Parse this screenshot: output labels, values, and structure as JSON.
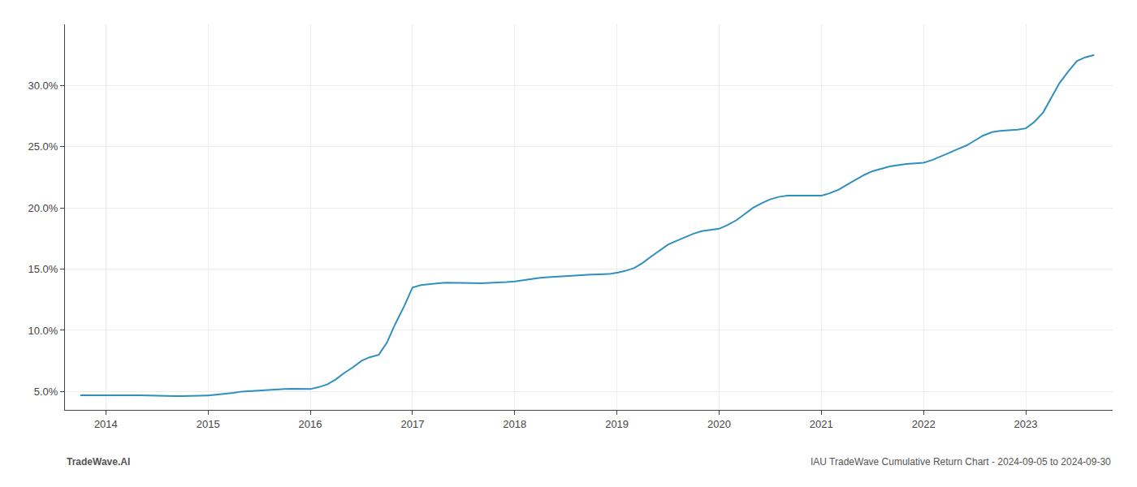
{
  "chart_data": {
    "type": "line",
    "annotations": [
      "TradeWave.AI",
      "IAU TradeWave Cumulative Return Chart - 2024-09-05 to 2024-09-30"
    ],
    "x": [
      2013.75,
      2014.0,
      2014.08,
      2014.17,
      2014.25,
      2014.33,
      2014.42,
      2014.5,
      2014.58,
      2014.67,
      2014.75,
      2014.83,
      2014.92,
      2015.0,
      2015.08,
      2015.17,
      2015.25,
      2015.33,
      2015.42,
      2015.5,
      2015.58,
      2015.67,
      2015.75,
      2015.83,
      2015.92,
      2016.0,
      2016.08,
      2016.17,
      2016.25,
      2016.33,
      2016.42,
      2016.5,
      2016.58,
      2016.67,
      2016.75,
      2016.83,
      2016.92,
      2017.0,
      2017.08,
      2017.17,
      2017.25,
      2017.33,
      2017.42,
      2017.5,
      2017.58,
      2017.67,
      2017.75,
      2017.83,
      2017.92,
      2018.0,
      2018.08,
      2018.17,
      2018.25,
      2018.33,
      2018.42,
      2018.5,
      2018.58,
      2018.67,
      2018.75,
      2018.83,
      2018.92,
      2019.0,
      2019.08,
      2019.17,
      2019.25,
      2019.33,
      2019.42,
      2019.5,
      2019.58,
      2019.67,
      2019.75,
      2019.83,
      2019.92,
      2020.0,
      2020.08,
      2020.17,
      2020.25,
      2020.33,
      2020.42,
      2020.5,
      2020.58,
      2020.67,
      2020.75,
      2020.83,
      2020.92,
      2021.0,
      2021.08,
      2021.17,
      2021.25,
      2021.33,
      2021.42,
      2021.5,
      2021.58,
      2021.67,
      2021.75,
      2021.83,
      2021.92,
      2022.0,
      2022.08,
      2022.17,
      2022.25,
      2022.33,
      2022.42,
      2022.5,
      2022.58,
      2022.67,
      2022.75,
      2022.83,
      2022.92,
      2023.0,
      2023.08,
      2023.17,
      2023.25,
      2023.33,
      2023.42,
      2023.5,
      2023.58,
      2023.67
    ],
    "values": [
      4.7,
      4.7,
      4.72,
      4.74,
      4.72,
      4.7,
      4.68,
      4.65,
      4.63,
      4.62,
      4.62,
      4.63,
      4.65,
      4.68,
      4.75,
      4.82,
      4.9,
      5.0,
      5.05,
      5.1,
      5.15,
      5.18,
      5.2,
      5.22,
      5.22,
      5.2,
      5.35,
      5.6,
      6.0,
      6.5,
      7.0,
      7.5,
      7.8,
      8.0,
      9.0,
      10.5,
      12.0,
      13.5,
      13.7,
      13.8,
      13.85,
      13.9,
      13.9,
      13.88,
      13.86,
      13.85,
      13.87,
      13.9,
      13.95,
      14.0,
      14.1,
      14.2,
      14.3,
      14.35,
      14.4,
      14.45,
      14.5,
      14.52,
      14.55,
      14.58,
      14.6,
      14.7,
      14.85,
      15.1,
      15.5,
      16.0,
      16.5,
      17.0,
      17.3,
      17.6,
      17.9,
      18.1,
      18.2,
      18.3,
      18.6,
      19.0,
      19.5,
      20.0,
      20.4,
      20.7,
      20.9,
      21.0,
      21.0,
      21.0,
      21.0,
      21.0,
      21.2,
      21.5,
      21.9,
      22.3,
      22.7,
      23.0,
      23.2,
      23.4,
      23.5,
      23.6,
      23.65,
      23.7,
      23.9,
      24.2,
      24.5,
      24.8,
      25.1,
      25.5,
      25.9,
      26.2,
      26.3,
      26.35,
      26.4,
      26.5,
      27.0,
      27.8,
      29.0,
      30.2,
      31.2,
      32.0,
      32.3,
      32.5
    ],
    "color": "#2f8fbf",
    "xlim": [
      2013.6,
      2023.85
    ],
    "xticks": [
      2014,
      2015,
      2016,
      2017,
      2018,
      2019,
      2020,
      2021,
      2022,
      2023
    ],
    "ylim": [
      3.5,
      35.0
    ],
    "yticks": [
      {
        "value": 5.0,
        "label": "5.0%"
      },
      {
        "value": 10.0,
        "label": "10.0%"
      },
      {
        "value": 15.0,
        "label": "15.0%"
      },
      {
        "value": 20.0,
        "label": "20.0%"
      },
      {
        "value": 25.0,
        "label": "25.0%"
      },
      {
        "value": 30.0,
        "label": "30.0%"
      }
    ],
    "grid": true
  }
}
